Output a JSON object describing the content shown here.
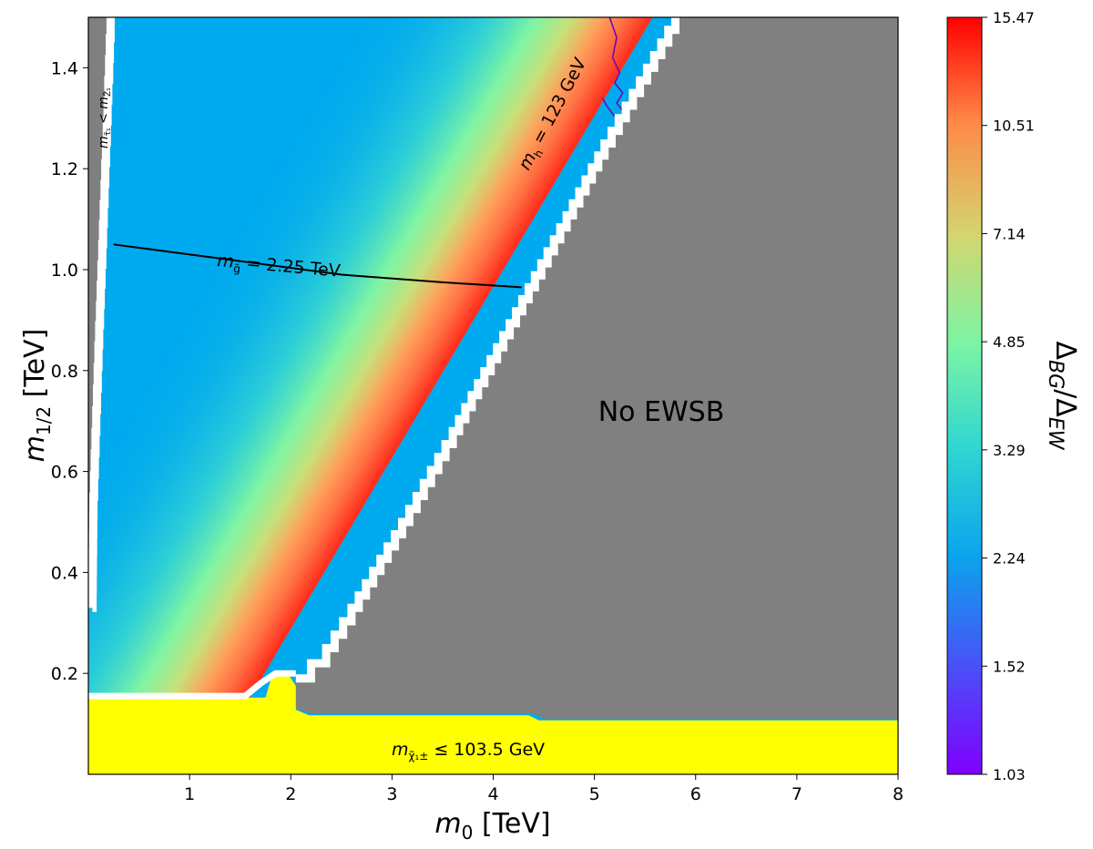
{
  "chart_data": {
    "type": "heatmap",
    "title": "",
    "xlabel": "m_0 [TeV]",
    "ylabel": "m_1/2 [TeV]",
    "x_label_main": "m",
    "x_label_sub": "0",
    "x_label_unit": "[TeV]",
    "y_label_main": "m",
    "y_label_sub": "1/2",
    "y_label_unit": "[TeV]",
    "xlim": [
      0,
      8
    ],
    "ylim": [
      0,
      1.5
    ],
    "x_ticks": [
      1,
      2,
      3,
      4,
      5,
      6,
      7,
      8
    ],
    "x_tick_labels": [
      "1",
      "2",
      "3",
      "4",
      "5",
      "6",
      "7",
      "8"
    ],
    "y_ticks": [
      0.2,
      0.4,
      0.6,
      0.8,
      1.0,
      1.2,
      1.4
    ],
    "y_tick_labels": [
      "0.2",
      "0.4",
      "0.6",
      "0.8",
      "1.0",
      "1.2",
      "1.4"
    ],
    "colorbar": {
      "label": "Δ_BG/Δ_EW",
      "label_delta1": "Δ",
      "label_sub1": "BG",
      "label_slash": "/",
      "label_delta2": "Δ",
      "label_sub2": "EW",
      "min": 1.03,
      "max": 15.47,
      "ticks": [
        1.03,
        1.52,
        2.24,
        3.29,
        4.85,
        7.14,
        10.51,
        15.47
      ],
      "tick_labels": [
        "1.03",
        "1.52",
        "2.24",
        "3.29",
        "4.85",
        "7.14",
        "10.51",
        "15.47"
      ],
      "colormap": "rainbow"
    },
    "regions": [
      {
        "name": "No EWSB",
        "label": "No EWSB",
        "color": "#808080"
      },
      {
        "name": "chargino-bound",
        "label": "m_χ1± ≤ 103.5 GeV",
        "label_main": "m",
        "label_sub": "χ̃₁±",
        "label_rest": " ≤ 103.5 GeV",
        "color": "#ffff00"
      },
      {
        "name": "stau-lsp",
        "label": "m_τ1 < m_Z1",
        "label_m1": "m",
        "label_s1": "τ̃₁",
        "label_lt": " < ",
        "label_m2": "m",
        "label_s2": "Z̃₁",
        "color": "#808080"
      }
    ],
    "contours": [
      {
        "name": "gluino-mass",
        "label_main": "m",
        "label_sub": "g̃",
        "label_rest": " = 2.25 TeV",
        "value": "2.25 TeV",
        "color": "#000000",
        "x": [
          0.25,
          1.2,
          2.5,
          3.5,
          4.28
        ],
        "y": [
          1.05,
          1.025,
          0.99,
          0.975,
          0.965
        ]
      },
      {
        "name": "higgs-mass",
        "label_main": "m",
        "label_sub": "h",
        "label_rest": " = 123 GeV",
        "value": "123 GeV",
        "color": "#6a0dad",
        "x": [
          5.15,
          5.22,
          5.18,
          5.25,
          5.2,
          5.28,
          5.22,
          5.3,
          5.25,
          5.12,
          5.08
        ],
        "y": [
          1.5,
          1.46,
          1.42,
          1.39,
          1.37,
          1.35,
          1.33,
          1.31,
          1.29,
          1.325,
          1.34
        ]
      }
    ],
    "valley_color_ramp": [
      "#00aaee",
      "#2fd0d6",
      "#7ff4a3",
      "#c8e07a",
      "#ffa05a",
      "#ff6a40",
      "#ff2a1a"
    ]
  }
}
